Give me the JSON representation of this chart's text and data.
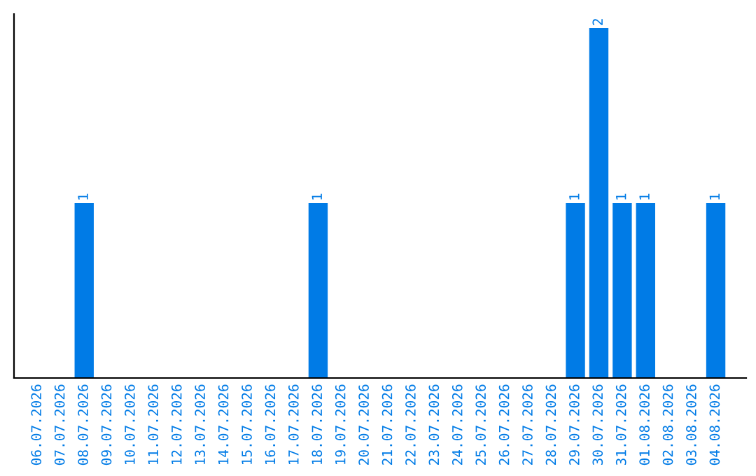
{
  "chart_data": {
    "type": "bar",
    "categories": [
      "06.07.2026",
      "07.07.2026",
      "08.07.2026",
      "09.07.2026",
      "10.07.2026",
      "11.07.2026",
      "12.07.2026",
      "13.07.2026",
      "14.07.2026",
      "15.07.2026",
      "16.07.2026",
      "17.07.2026",
      "18.07.2026",
      "19.07.2026",
      "20.07.2026",
      "21.07.2026",
      "22.07.2026",
      "23.07.2026",
      "24.07.2026",
      "25.07.2026",
      "26.07.2026",
      "27.07.2026",
      "28.07.2026",
      "29.07.2026",
      "30.07.2026",
      "31.07.2026",
      "01.08.2026",
      "02.08.2026",
      "03.08.2026",
      "04.08.2026"
    ],
    "values": [
      0,
      0,
      1,
      0,
      0,
      0,
      0,
      0,
      0,
      0,
      0,
      0,
      1,
      0,
      0,
      0,
      0,
      0,
      0,
      0,
      0,
      0,
      0,
      1,
      2,
      1,
      1,
      0,
      0,
      1
    ],
    "value_labels": [
      null,
      null,
      "1",
      null,
      null,
      null,
      null,
      null,
      null,
      null,
      null,
      null,
      "1",
      null,
      null,
      null,
      null,
      null,
      null,
      null,
      null,
      null,
      null,
      "1",
      "2",
      "1",
      "1",
      null,
      null,
      "1"
    ],
    "color": "#007be6",
    "ylim": [
      0,
      2.08
    ],
    "tick_labels": "x",
    "grid": false
  }
}
